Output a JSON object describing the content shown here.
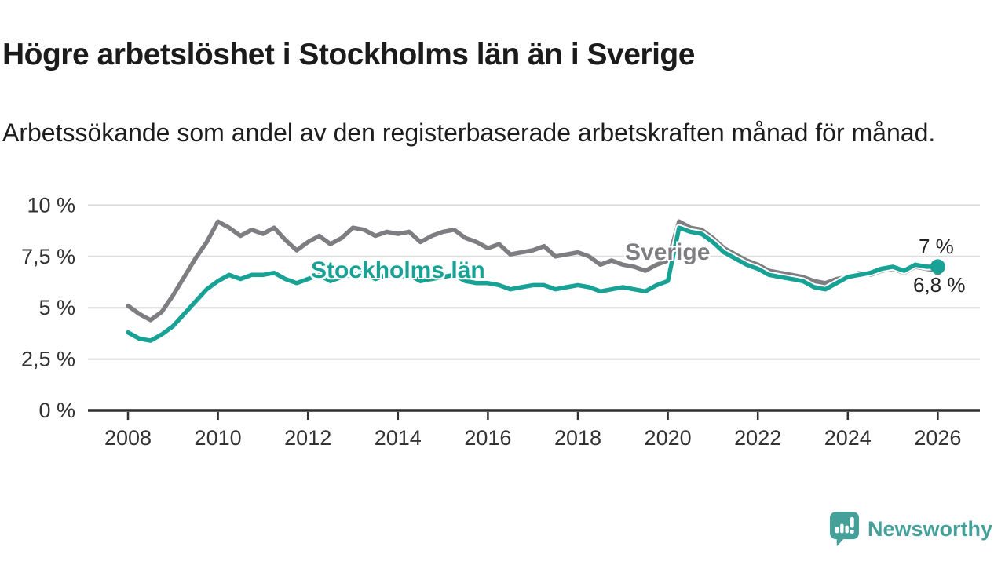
{
  "header": {
    "title": "Högre arbetslöshet i Stockholms län än i Sverige",
    "subtitle": "Arbetssökande som andel av den registerbaserade arbetskraften månad för månad."
  },
  "chart_data": {
    "type": "line",
    "title": "Högre arbetslöshet i Stockholms län än i Sverige",
    "xlabel": "",
    "ylabel": "",
    "unit": "%",
    "x_start": 2008,
    "x_step": 0.25,
    "ylim": [
      0,
      10.5
    ],
    "grid": "horizontal",
    "legend": "inline-labels",
    "colors": {
      "grid": "#dcdcdc",
      "axis": "#2f2f2f",
      "axis_text": "#333333",
      "title_text": "#1b1b1b",
      "end_label_text": "#222222",
      "logo": "#46a09a"
    },
    "y_ticks": [
      {
        "value": 10,
        "label": "10 %"
      },
      {
        "value": 7.5,
        "label": "7,5 %"
      },
      {
        "value": 5,
        "label": "5 %"
      },
      {
        "value": 2.5,
        "label": "2,5 %"
      },
      {
        "value": 0,
        "label": "0 %"
      }
    ],
    "x_ticks": [
      {
        "year": 2008,
        "label": "2008"
      },
      {
        "year": 2010,
        "label": "2010"
      },
      {
        "year": 2012,
        "label": "2012"
      },
      {
        "year": 2014,
        "label": "2014"
      },
      {
        "year": 2016,
        "label": "2016"
      },
      {
        "year": 2018,
        "label": "2018"
      },
      {
        "year": 2020,
        "label": "2020"
      },
      {
        "year": 2022,
        "label": "2022"
      },
      {
        "year": 2024,
        "label": "2024"
      },
      {
        "year": 2026,
        "label": "2026"
      }
    ],
    "series": [
      {
        "id": "sverige",
        "name": "Sverige",
        "color": "#7e7e82",
        "end_label": "6,8 %",
        "end_value": 6.8,
        "end_dot_r": 5.5,
        "casing": false,
        "values": [
          5.1,
          4.7,
          4.4,
          4.8,
          5.6,
          6.5,
          7.4,
          8.2,
          9.2,
          8.9,
          8.5,
          8.8,
          8.6,
          8.9,
          8.3,
          7.8,
          8.2,
          8.5,
          8.1,
          8.4,
          8.9,
          8.8,
          8.5,
          8.7,
          8.6,
          8.7,
          8.2,
          8.5,
          8.7,
          8.8,
          8.4,
          8.2,
          7.9,
          8.1,
          7.6,
          7.7,
          7.8,
          8.0,
          7.5,
          7.6,
          7.7,
          7.5,
          7.1,
          7.3,
          7.1,
          7.0,
          6.8,
          7.1,
          7.3,
          9.2,
          8.9,
          8.8,
          8.4,
          7.9,
          7.6,
          7.3,
          7.1,
          6.8,
          6.7,
          6.6,
          6.5,
          6.3,
          6.2,
          6.4,
          6.5,
          6.7,
          6.6,
          6.8,
          6.9,
          6.7,
          7.0,
          6.9,
          6.8
        ]
      },
      {
        "id": "stockholm",
        "name": "Stockholms län",
        "color": "#17a295",
        "end_label": "7 %",
        "end_value": 7.0,
        "end_dot_r": 9.5,
        "casing": true,
        "values": [
          3.8,
          3.5,
          3.4,
          3.7,
          4.1,
          4.7,
          5.3,
          5.9,
          6.3,
          6.6,
          6.4,
          6.6,
          6.6,
          6.7,
          6.4,
          6.2,
          6.4,
          6.6,
          6.3,
          6.5,
          6.6,
          6.7,
          6.4,
          6.6,
          6.5,
          6.6,
          6.3,
          6.4,
          6.5,
          6.6,
          6.3,
          6.2,
          6.2,
          6.1,
          5.9,
          6.0,
          6.1,
          6.1,
          5.9,
          6.0,
          6.1,
          6.0,
          5.8,
          5.9,
          6.0,
          5.9,
          5.8,
          6.1,
          6.3,
          8.9,
          8.7,
          8.6,
          8.2,
          7.7,
          7.4,
          7.1,
          6.9,
          6.6,
          6.5,
          6.4,
          6.3,
          6.0,
          5.9,
          6.2,
          6.5,
          6.6,
          6.7,
          6.9,
          7.0,
          6.8,
          7.1,
          7.0,
          7.0
        ]
      }
    ],
    "end_labels": {
      "stockholm": "7 %",
      "sverige": "6,8 %"
    }
  },
  "footer": {
    "brand": "Newsworthy",
    "logo_icon": "bar-chart-exclamation-speech-bubble-icon"
  }
}
